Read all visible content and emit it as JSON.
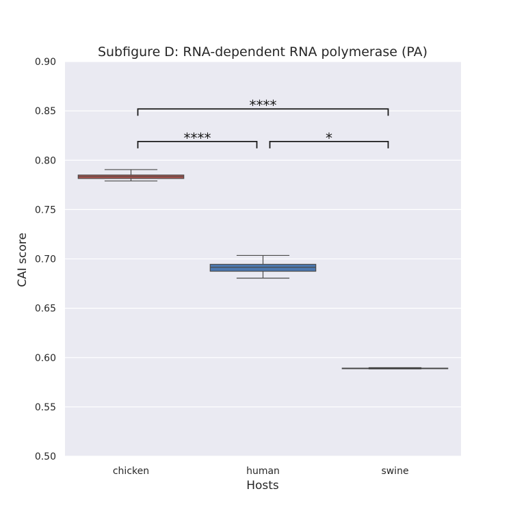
{
  "chart_data": {
    "type": "box",
    "title": "Subfigure D: RNA-dependent RNA polymerase (PA)",
    "xlabel": "Hosts",
    "ylabel": "CAI score",
    "ylim": [
      0.5,
      0.9
    ],
    "yticks": [
      "0.50",
      "0.55",
      "0.60",
      "0.65",
      "0.70",
      "0.75",
      "0.80",
      "0.85",
      "0.90"
    ],
    "grid": true,
    "categories": [
      "chicken",
      "human",
      "swine"
    ],
    "boxes": [
      {
        "category": "chicken",
        "whisker_low": 0.779,
        "q1": 0.7815,
        "median": 0.7835,
        "q3": 0.785,
        "whisker_high": 0.7905,
        "color": "#b5524b"
      },
      {
        "category": "human",
        "whisker_low": 0.6805,
        "q1": 0.6875,
        "median": 0.6915,
        "q3": 0.6945,
        "whisker_high": 0.7035,
        "color": "#4c78b0"
      },
      {
        "category": "swine",
        "whisker_low": 0.5885,
        "q1": 0.5887,
        "median": 0.589,
        "q3": 0.5893,
        "whisker_high": 0.5898,
        "color": "#5c9e5a"
      }
    ],
    "annotations": [
      {
        "from": "chicken",
        "to": "swine",
        "y": 0.852,
        "label": "****"
      },
      {
        "from": "chicken",
        "to": "human",
        "y": 0.819,
        "label": "****"
      },
      {
        "from": "human",
        "to": "swine",
        "y": 0.819,
        "label": "*"
      }
    ]
  }
}
